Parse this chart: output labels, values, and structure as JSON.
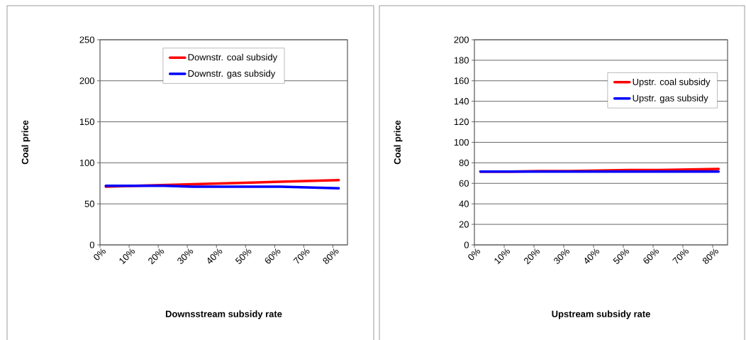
{
  "chart_data": [
    {
      "type": "line",
      "xlabel": "Downsstream subsidy rate",
      "ylabel": "Coal price",
      "x": [
        2,
        12,
        22,
        32,
        42,
        52,
        62,
        72,
        82
      ],
      "xlim": [
        0,
        85
      ],
      "xticks": [
        {
          "value": 0,
          "label": "0%"
        },
        {
          "value": 10,
          "label": "10%"
        },
        {
          "value": 20,
          "label": "20%"
        },
        {
          "value": 30,
          "label": "30%"
        },
        {
          "value": 40,
          "label": "40%"
        },
        {
          "value": 50,
          "label": "50%"
        },
        {
          "value": 60,
          "label": "60%"
        },
        {
          "value": 70,
          "label": "70%"
        },
        {
          "value": 80,
          "label": "80%"
        }
      ],
      "ylim": [
        0,
        250
      ],
      "yticks": [
        0,
        50,
        100,
        150,
        200,
        250
      ],
      "grid": "y",
      "legend": "top",
      "marker": "none",
      "line_style": "solid",
      "series": [
        {
          "name": "Downstr. coal subsidy",
          "color": "#ff0000",
          "values": [
            71,
            72,
            73,
            74,
            75,
            76,
            77,
            78,
            79
          ]
        },
        {
          "name": "Downstr. gas subsidy",
          "color": "#0000ff",
          "values": [
            72,
            72,
            72,
            71,
            71,
            71,
            71,
            70,
            69
          ]
        }
      ]
    },
    {
      "type": "line",
      "xlabel": "Upstream subsidy rate",
      "ylabel": "Coal price",
      "x": [
        2,
        12,
        22,
        32,
        42,
        52,
        62,
        72,
        82
      ],
      "xlim": [
        0,
        85
      ],
      "xticks": [
        {
          "value": 0,
          "label": "0%"
        },
        {
          "value": 10,
          "label": "10%"
        },
        {
          "value": 20,
          "label": "20%"
        },
        {
          "value": 30,
          "label": "30%"
        },
        {
          "value": 40,
          "label": "40%"
        },
        {
          "value": 50,
          "label": "50%"
        },
        {
          "value": 60,
          "label": "60%"
        },
        {
          "value": 70,
          "label": "70%"
        },
        {
          "value": 80,
          "label": "80%"
        }
      ],
      "ylim": [
        0,
        200
      ],
      "yticks": [
        0,
        20,
        40,
        60,
        80,
        100,
        120,
        140,
        160,
        180,
        200
      ],
      "grid": "y",
      "legend": "top right",
      "marker": "none",
      "line_style": "solid",
      "series": [
        {
          "name": "Upstr. coal subsidy",
          "color": "#ff0000",
          "values": [
            71.5,
            71.5,
            72,
            72,
            72.5,
            73,
            73,
            73.5,
            74
          ]
        },
        {
          "name": "Upstr. gas subsidy",
          "color": "#0000ff",
          "values": [
            71.5,
            71.5,
            71.5,
            71.5,
            71.5,
            71.5,
            71.5,
            71.5,
            71.5
          ]
        }
      ]
    }
  ]
}
